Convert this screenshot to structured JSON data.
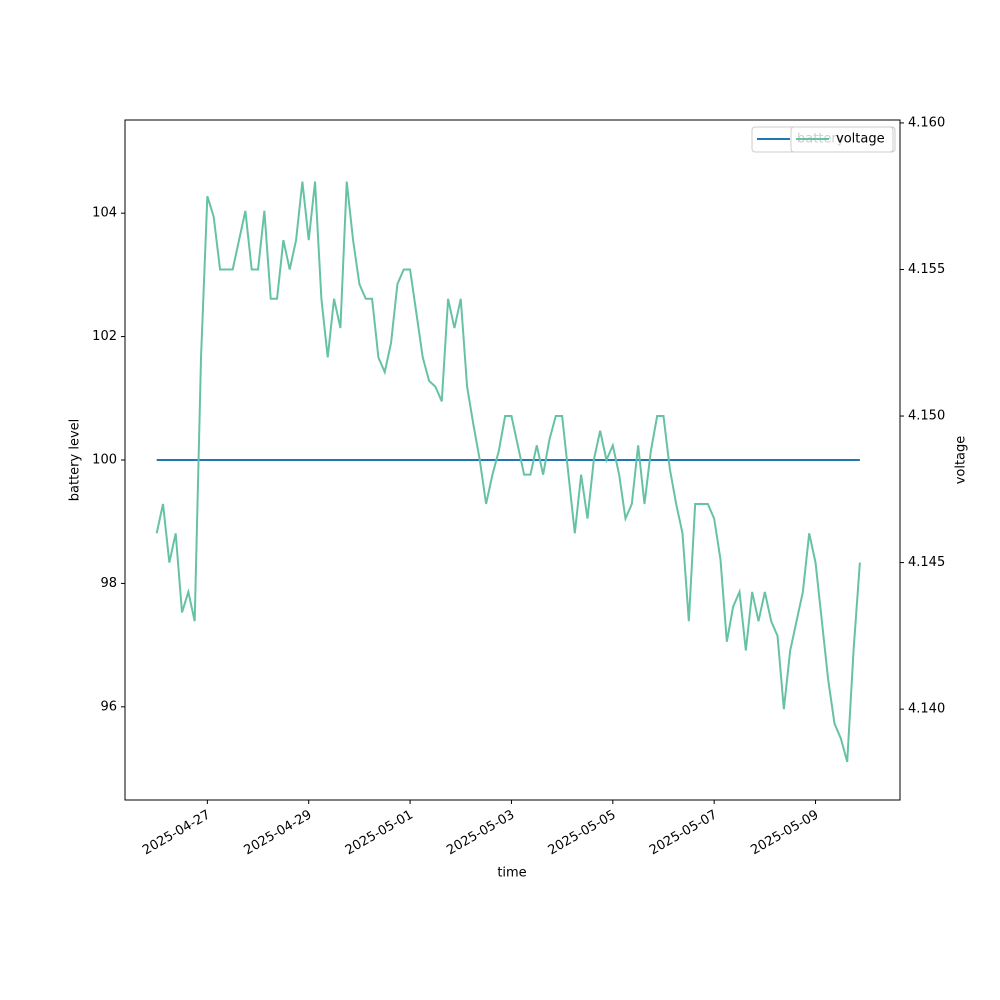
{
  "chart_data": {
    "type": "line",
    "xlabel": "time",
    "ylabel": "battery level",
    "y2label": "voltage",
    "x": [
      "2025-04-26T00:00",
      "2025-04-26T03:00",
      "2025-04-26T06:00",
      "2025-04-26T09:00",
      "2025-04-26T12:00",
      "2025-04-26T15:00",
      "2025-04-26T18:00",
      "2025-04-26T21:00",
      "2025-04-27T00:00",
      "2025-04-27T03:00",
      "2025-04-27T06:00",
      "2025-04-27T09:00",
      "2025-04-27T12:00",
      "2025-04-27T15:00",
      "2025-04-27T18:00",
      "2025-04-27T21:00",
      "2025-04-28T00:00",
      "2025-04-28T03:00",
      "2025-04-28T06:00",
      "2025-04-28T09:00",
      "2025-04-28T12:00",
      "2025-04-28T15:00",
      "2025-04-28T18:00",
      "2025-04-28T21:00",
      "2025-04-29T00:00",
      "2025-04-29T03:00",
      "2025-04-29T06:00",
      "2025-04-29T09:00",
      "2025-04-29T12:00",
      "2025-04-29T15:00",
      "2025-04-29T18:00",
      "2025-04-29T21:00",
      "2025-04-30T00:00",
      "2025-04-30T03:00",
      "2025-04-30T06:00",
      "2025-04-30T09:00",
      "2025-04-30T12:00",
      "2025-04-30T15:00",
      "2025-04-30T18:00",
      "2025-04-30T21:00",
      "2025-05-01T00:00",
      "2025-05-01T03:00",
      "2025-05-01T06:00",
      "2025-05-01T09:00",
      "2025-05-01T12:00",
      "2025-05-01T15:00",
      "2025-05-01T18:00",
      "2025-05-01T21:00",
      "2025-05-02T00:00",
      "2025-05-02T03:00",
      "2025-05-02T06:00",
      "2025-05-02T09:00",
      "2025-05-02T12:00",
      "2025-05-02T15:00",
      "2025-05-02T18:00",
      "2025-05-02T21:00",
      "2025-05-03T00:00",
      "2025-05-03T03:00",
      "2025-05-03T06:00",
      "2025-05-03T09:00",
      "2025-05-03T12:00",
      "2025-05-03T15:00",
      "2025-05-03T18:00",
      "2025-05-03T21:00",
      "2025-05-04T00:00",
      "2025-05-04T03:00",
      "2025-05-04T06:00",
      "2025-05-04T09:00",
      "2025-05-04T12:00",
      "2025-05-04T15:00",
      "2025-05-04T18:00",
      "2025-05-04T21:00",
      "2025-05-05T00:00",
      "2025-05-05T03:00",
      "2025-05-05T06:00",
      "2025-05-05T09:00",
      "2025-05-05T12:00",
      "2025-05-05T15:00",
      "2025-05-05T18:00",
      "2025-05-05T21:00",
      "2025-05-06T00:00",
      "2025-05-06T03:00",
      "2025-05-06T06:00",
      "2025-05-06T09:00",
      "2025-05-06T12:00",
      "2025-05-06T15:00",
      "2025-05-06T18:00",
      "2025-05-06T21:00",
      "2025-05-07T00:00",
      "2025-05-07T03:00",
      "2025-05-07T06:00",
      "2025-05-07T09:00",
      "2025-05-07T12:00",
      "2025-05-07T15:00",
      "2025-05-07T18:00",
      "2025-05-07T21:00",
      "2025-05-08T00:00",
      "2025-05-08T03:00",
      "2025-05-08T06:00",
      "2025-05-08T09:00",
      "2025-05-08T12:00",
      "2025-05-08T15:00",
      "2025-05-08T18:00",
      "2025-05-08T21:00",
      "2025-05-09T00:00",
      "2025-05-09T03:00",
      "2025-05-09T06:00",
      "2025-05-09T09:00",
      "2025-05-09T12:00",
      "2025-05-09T15:00",
      "2025-05-09T18:00",
      "2025-05-09T21:00"
    ],
    "series": [
      {
        "name": "battery",
        "color": "#1f77b4",
        "axis": "y",
        "values": [
          100,
          100,
          100,
          100,
          100,
          100,
          100,
          100,
          100,
          100,
          100,
          100,
          100,
          100,
          100,
          100,
          100,
          100,
          100,
          100,
          100,
          100,
          100,
          100,
          100,
          100,
          100,
          100,
          100,
          100,
          100,
          100,
          100,
          100,
          100,
          100,
          100,
          100,
          100,
          100,
          100,
          100,
          100,
          100,
          100,
          100,
          100,
          100,
          100,
          100,
          100,
          100,
          100,
          100,
          100,
          100,
          100,
          100,
          100,
          100,
          100,
          100,
          100,
          100,
          100,
          100,
          100,
          100,
          100,
          100,
          100,
          100,
          100,
          100,
          100,
          100,
          100,
          100,
          100,
          100,
          100,
          100,
          100,
          100,
          100,
          100,
          100,
          100,
          100,
          100,
          100,
          100,
          100,
          100,
          100,
          100,
          100,
          100,
          100,
          100,
          100,
          100,
          100,
          100,
          100,
          100,
          100,
          100,
          100,
          100,
          100,
          100
        ]
      },
      {
        "name": "voltage",
        "color": "#66c2a5",
        "axis": "y2",
        "values": [
          4.146,
          4.147,
          4.145,
          4.146,
          4.1433,
          4.144,
          4.143,
          4.152,
          4.1575,
          4.1568,
          4.155,
          4.155,
          4.155,
          4.156,
          4.157,
          4.155,
          4.155,
          4.157,
          4.154,
          4.154,
          4.156,
          4.155,
          4.156,
          4.158,
          4.156,
          4.158,
          4.154,
          4.152,
          4.154,
          4.153,
          4.158,
          4.156,
          4.1545,
          4.154,
          4.154,
          4.152,
          4.1515,
          4.1525,
          4.1545,
          4.155,
          4.155,
          4.1535,
          4.152,
          4.1512,
          4.151,
          4.1505,
          4.154,
          4.153,
          4.154,
          4.151,
          4.1497,
          4.1485,
          4.147,
          4.148,
          4.1488,
          4.15,
          4.15,
          4.149,
          4.148,
          4.148,
          4.149,
          4.148,
          4.1492,
          4.15,
          4.15,
          4.148,
          4.146,
          4.148,
          4.1465,
          4.1485,
          4.1495,
          4.1485,
          4.149,
          4.148,
          4.1465,
          4.147,
          4.149,
          4.147,
          4.1488,
          4.15,
          4.15,
          4.1482,
          4.147,
          4.146,
          4.143,
          4.147,
          4.147,
          4.147,
          4.1465,
          4.1451,
          4.1423,
          4.1435,
          4.144,
          4.142,
          4.144,
          4.143,
          4.144,
          4.143,
          4.1425,
          4.14,
          4.142,
          4.143,
          4.144,
          4.146,
          4.145,
          4.143,
          4.141,
          4.1395,
          4.139,
          4.1382,
          4.142,
          4.145
        ]
      }
    ],
    "xlim": [
      "2025-04-25T09:00",
      "2025-05-10T16:00"
    ],
    "xticks": [
      "2025-04-27",
      "2025-04-29",
      "2025-05-01",
      "2025-05-03",
      "2025-05-05",
      "2025-05-07",
      "2025-05-09"
    ],
    "ylim": [
      94.49,
      105.51
    ],
    "yticks": [
      96,
      98,
      100,
      102,
      104
    ],
    "y2lim": [
      4.1369,
      4.1601
    ],
    "y2ticks": [
      {
        "value": 4.14,
        "label": "4.140"
      },
      4.145,
      {
        "value": 4.15,
        "label": "4.150"
      },
      4.155,
      {
        "value": 4.16,
        "label": "4.160"
      }
    ],
    "legend": "upper right",
    "grid": false
  }
}
